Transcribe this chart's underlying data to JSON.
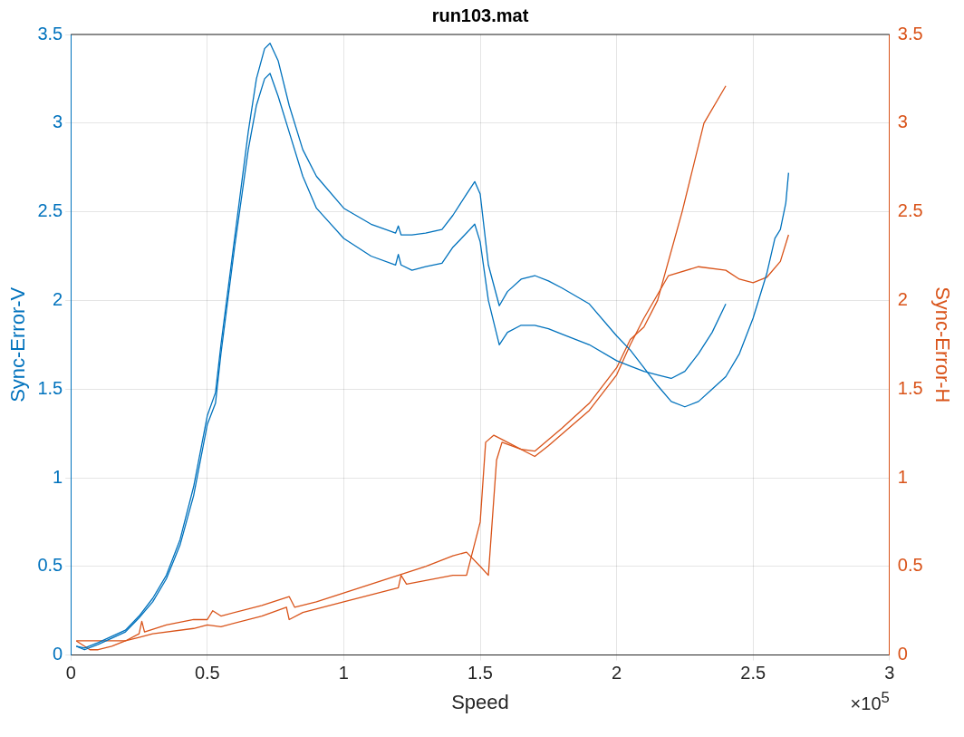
{
  "chart_data": {
    "type": "line",
    "title": "run103.mat",
    "xlabel": "Speed",
    "ylabel": "Sync-Error-V",
    "y2label": "Sync-Error-H",
    "annotations": [
      "×10$^{5}$"
    ],
    "grid": true,
    "marker": "none",
    "line_style": "solid",
    "xlim": [
      0,
      3
    ],
    "xticks": [
      0,
      0.5,
      1,
      1.5,
      2,
      2.5,
      3
    ],
    "ylim": [
      0,
      3.5
    ],
    "yticks": [
      0,
      0.5,
      1,
      1.5,
      2,
      2.5,
      3,
      3.5
    ],
    "y2lim": [
      0,
      3.5
    ],
    "y2ticks": [
      0,
      0.5,
      1,
      1.5,
      2,
      2.5,
      3,
      3.5
    ],
    "series": [
      {
        "color": "#0072bd",
        "x": [
          0.02,
          0.05,
          0.1,
          0.2,
          0.25,
          0.3,
          0.35,
          0.4,
          0.45,
          0.5,
          0.53,
          0.55,
          0.6,
          0.65,
          0.68,
          0.71,
          0.73,
          0.76,
          0.8,
          0.85,
          0.9,
          1.0,
          1.1,
          1.19,
          1.2,
          1.21,
          1.25,
          1.3,
          1.36,
          1.4,
          1.45,
          1.48,
          1.5,
          1.53,
          1.57,
          1.6,
          1.65,
          1.7,
          1.75,
          1.8,
          1.9,
          2.0,
          2.05,
          2.1,
          2.15,
          2.2,
          2.25,
          2.3,
          2.35,
          2.4,
          2.45,
          2.5,
          2.55,
          2.58,
          2.6,
          2.62,
          2.63
        ],
        "values": [
          0.05,
          0.04,
          0.07,
          0.14,
          0.22,
          0.32,
          0.45,
          0.65,
          0.95,
          1.35,
          1.48,
          1.75,
          2.35,
          2.95,
          3.25,
          3.42,
          3.45,
          3.35,
          3.1,
          2.85,
          2.7,
          2.52,
          2.43,
          2.38,
          2.42,
          2.37,
          2.37,
          2.38,
          2.4,
          2.48,
          2.6,
          2.67,
          2.6,
          2.2,
          1.97,
          2.05,
          2.12,
          2.14,
          2.11,
          2.07,
          1.98,
          1.8,
          1.72,
          1.62,
          1.52,
          1.43,
          1.4,
          1.43,
          1.5,
          1.57,
          1.7,
          1.9,
          2.15,
          2.35,
          2.4,
          2.55,
          2.72
        ]
      },
      {
        "color": "#0072bd",
        "x": [
          0.02,
          0.05,
          0.1,
          0.2,
          0.25,
          0.3,
          0.35,
          0.4,
          0.45,
          0.5,
          0.53,
          0.55,
          0.6,
          0.65,
          0.68,
          0.71,
          0.73,
          0.76,
          0.8,
          0.85,
          0.9,
          1.0,
          1.1,
          1.19,
          1.2,
          1.21,
          1.25,
          1.3,
          1.36,
          1.4,
          1.45,
          1.48,
          1.5,
          1.53,
          1.57,
          1.6,
          1.65,
          1.7,
          1.75,
          1.8,
          1.9,
          2.0,
          2.05,
          2.1,
          2.15,
          2.2,
          2.25,
          2.3,
          2.35,
          2.4
        ],
        "values": [
          0.05,
          0.03,
          0.06,
          0.13,
          0.21,
          0.3,
          0.43,
          0.62,
          0.9,
          1.3,
          1.42,
          1.7,
          2.3,
          2.85,
          3.1,
          3.25,
          3.28,
          3.15,
          2.95,
          2.7,
          2.52,
          2.35,
          2.25,
          2.2,
          2.26,
          2.2,
          2.17,
          2.19,
          2.21,
          2.3,
          2.38,
          2.43,
          2.33,
          2.0,
          1.75,
          1.82,
          1.86,
          1.86,
          1.84,
          1.81,
          1.75,
          1.66,
          1.63,
          1.6,
          1.58,
          1.56,
          1.6,
          1.7,
          1.82,
          1.98
        ]
      },
      {
        "color": "#d95319",
        "axis": "y2",
        "x": [
          0.02,
          0.2,
          0.25,
          0.26,
          0.27,
          0.35,
          0.45,
          0.5,
          0.52,
          0.55,
          0.7,
          0.8,
          0.82,
          0.9,
          1.0,
          1.1,
          1.2,
          1.3,
          1.4,
          1.45,
          1.5,
          1.53,
          1.56,
          1.58,
          1.65,
          1.7,
          1.8,
          1.9,
          2.0,
          2.05,
          2.1,
          2.15,
          2.24,
          2.32,
          2.4
        ],
        "values": [
          0.08,
          0.08,
          0.12,
          0.19,
          0.13,
          0.17,
          0.2,
          0.2,
          0.25,
          0.22,
          0.28,
          0.33,
          0.27,
          0.3,
          0.35,
          0.4,
          0.45,
          0.5,
          0.56,
          0.58,
          0.5,
          0.45,
          1.1,
          1.2,
          1.16,
          1.15,
          1.28,
          1.42,
          1.62,
          1.78,
          1.85,
          2.0,
          2.5,
          3.0,
          3.21
        ]
      },
      {
        "color": "#d95319",
        "axis": "y2",
        "x": [
          0.02,
          0.07,
          0.1,
          0.15,
          0.2,
          0.25,
          0.3,
          0.45,
          0.5,
          0.55,
          0.7,
          0.79,
          0.8,
          0.85,
          1.0,
          1.1,
          1.2,
          1.21,
          1.23,
          1.3,
          1.4,
          1.45,
          1.5,
          1.52,
          1.55,
          1.6,
          1.7,
          1.75,
          1.9,
          2.0,
          2.05,
          2.1,
          2.19,
          2.3,
          2.4,
          2.45,
          2.5,
          2.55,
          2.6,
          2.63
        ],
        "values": [
          0.08,
          0.03,
          0.03,
          0.05,
          0.08,
          0.1,
          0.12,
          0.15,
          0.17,
          0.16,
          0.22,
          0.27,
          0.2,
          0.24,
          0.3,
          0.34,
          0.38,
          0.45,
          0.4,
          0.42,
          0.45,
          0.45,
          0.75,
          1.2,
          1.24,
          1.2,
          1.12,
          1.18,
          1.38,
          1.58,
          1.75,
          1.9,
          2.14,
          2.19,
          2.17,
          2.12,
          2.1,
          2.13,
          2.22,
          2.37
        ]
      }
    ]
  }
}
